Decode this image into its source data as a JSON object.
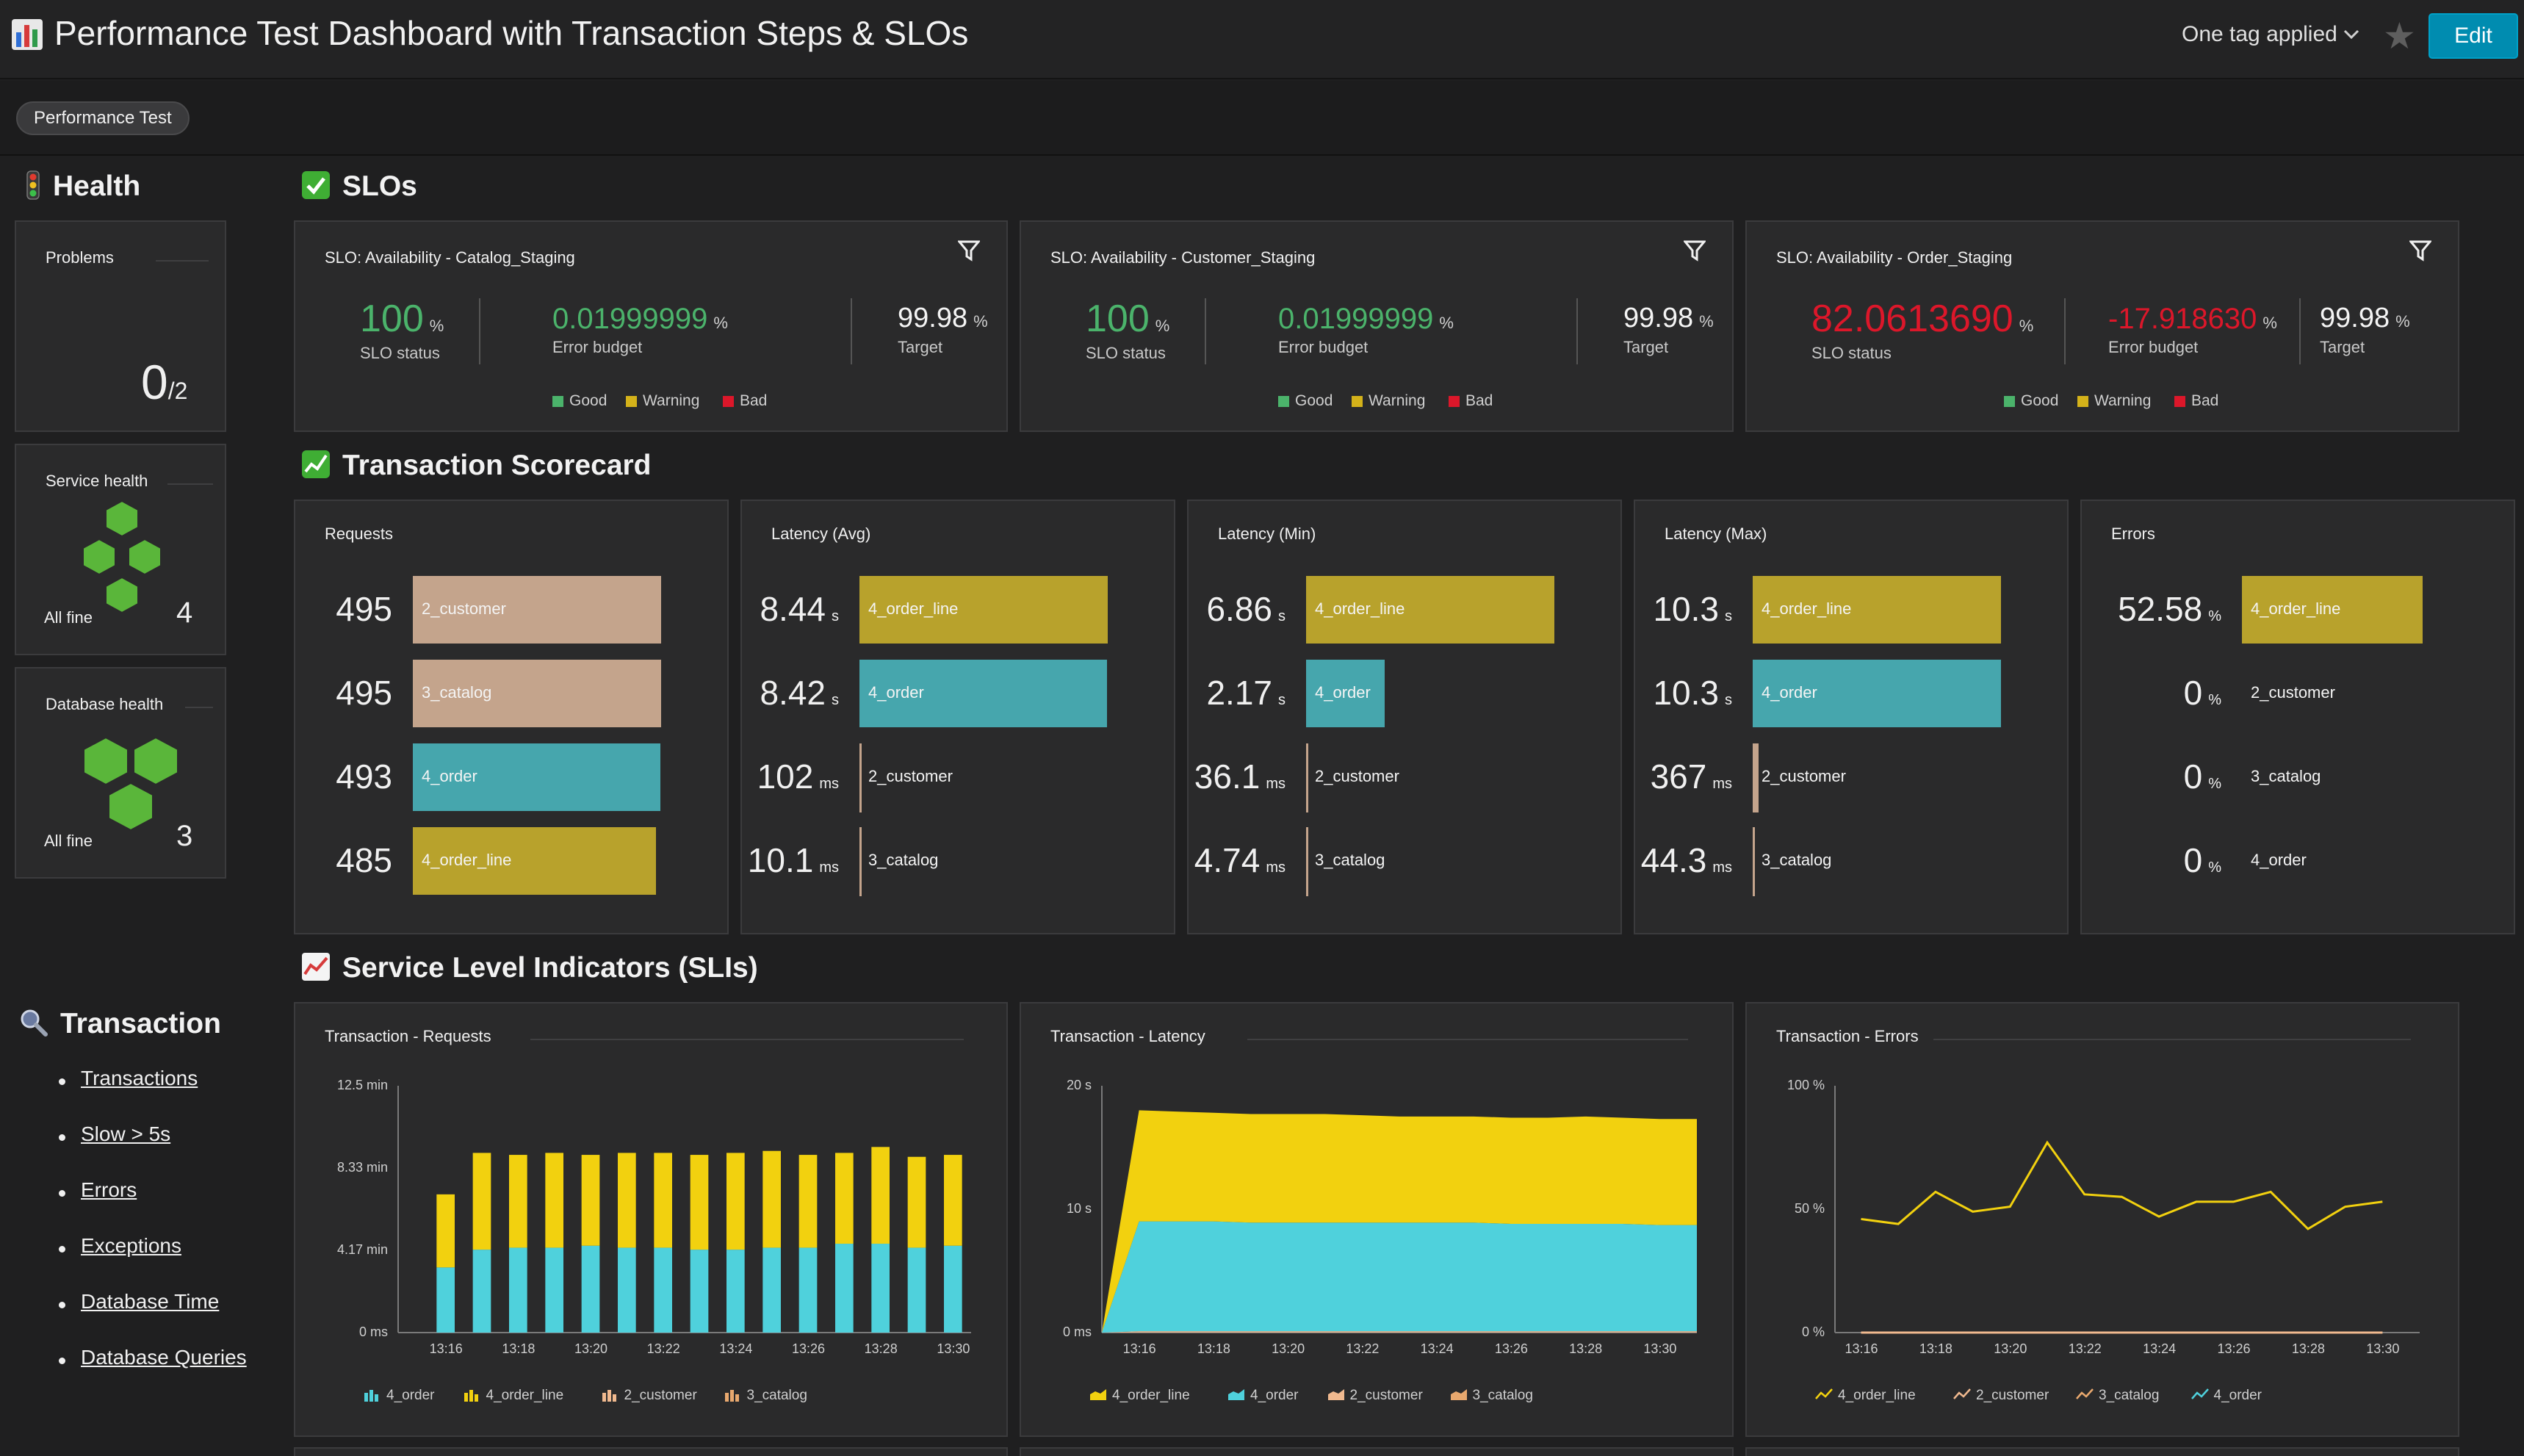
{
  "header": {
    "title": "Performance Test Dashboard with Transaction Steps & SLOs",
    "tag_selector": "One tag applied",
    "edit_label": "Edit"
  },
  "tags": [
    "Performance Test"
  ],
  "health": {
    "heading": "Health",
    "problems": {
      "label": "Problems",
      "value": "0",
      "total": "/2"
    },
    "service_health": {
      "label": "Service health",
      "status": "All fine",
      "count": "4"
    },
    "database_health": {
      "label": "Database health",
      "status": "All fine",
      "count": "3"
    }
  },
  "transaction": {
    "heading": "Transaction",
    "links": [
      "Transactions",
      "Slow > 5s",
      "Errors",
      "Exceptions",
      "Database Time",
      "Database Queries"
    ]
  },
  "slos": {
    "heading": "SLOs",
    "legend": [
      "Good",
      "Warning",
      "Bad"
    ],
    "colors": {
      "good": "#4bb36b",
      "warning": "#d4b21a",
      "bad": "#dc172a"
    },
    "tiles": [
      {
        "title": "SLO: Availability - Catalog_Staging",
        "status": "100",
        "status_unit": "%",
        "status_label": "SLO status",
        "budget": "0.01999999",
        "budget_unit": "%",
        "budget_label": "Error budget",
        "target": "99.98",
        "target_unit": "%",
        "target_label": "Target",
        "state": "good"
      },
      {
        "title": "SLO: Availability - Customer_Staging",
        "status": "100",
        "status_unit": "%",
        "status_label": "SLO status",
        "budget": "0.01999999",
        "budget_unit": "%",
        "budget_label": "Error budget",
        "target": "99.98",
        "target_unit": "%",
        "target_label": "Target",
        "state": "good"
      },
      {
        "title": "SLO: Availability - Order_Staging",
        "status": "82.0613690",
        "status_unit": "%",
        "status_label": "SLO status",
        "budget": "-17.918630",
        "budget_unit": "%",
        "budget_label": "Error budget",
        "target": "99.98",
        "target_unit": "%",
        "target_label": "Target",
        "state": "bad"
      }
    ]
  },
  "scorecard": {
    "heading": "Transaction Scorecard",
    "step_colors": {
      "2_customer": "#c4a48c",
      "3_catalog": "#c4a48c",
      "4_order": "#46a6ad",
      "4_order_line": "#b8a22c"
    },
    "tiles": [
      {
        "title": "Requests",
        "rows": [
          {
            "value": "495",
            "unit": "",
            "label": "2_customer",
            "fraction": 1.0
          },
          {
            "value": "495",
            "unit": "",
            "label": "3_catalog",
            "fraction": 1.0
          },
          {
            "value": "493",
            "unit": "",
            "label": "4_order",
            "fraction": 0.996
          },
          {
            "value": "485",
            "unit": "",
            "label": "4_order_line",
            "fraction": 0.98
          }
        ]
      },
      {
        "title": "Latency (Avg)",
        "rows": [
          {
            "value": "8.44",
            "unit": "s",
            "label": "4_order_line",
            "fraction": 1.0
          },
          {
            "value": "8.42",
            "unit": "s",
            "label": "4_order",
            "fraction": 0.998
          },
          {
            "value": "102",
            "unit": "ms",
            "label": "2_customer",
            "fraction": 0.012
          },
          {
            "value": "10.1",
            "unit": "ms",
            "label": "3_catalog",
            "fraction": 0.001
          }
        ]
      },
      {
        "title": "Latency (Min)",
        "rows": [
          {
            "value": "6.86",
            "unit": "s",
            "label": "4_order_line",
            "fraction": 1.0
          },
          {
            "value": "2.17",
            "unit": "s",
            "label": "4_order",
            "fraction": 0.316
          },
          {
            "value": "36.1",
            "unit": "ms",
            "label": "2_customer",
            "fraction": 0.005
          },
          {
            "value": "4.74",
            "unit": "ms",
            "label": "3_catalog",
            "fraction": 0.001
          }
        ]
      },
      {
        "title": "Latency (Max)",
        "rows": [
          {
            "value": "10.3",
            "unit": "s",
            "label": "4_order_line",
            "fraction": 1.0
          },
          {
            "value": "10.3",
            "unit": "s",
            "label": "4_order",
            "fraction": 1.0
          },
          {
            "value": "367",
            "unit": "ms",
            "label": "2_customer",
            "fraction": 0.036
          },
          {
            "value": "44.3",
            "unit": "ms",
            "label": "3_catalog",
            "fraction": 0.004
          }
        ]
      },
      {
        "title": "Errors",
        "rows": [
          {
            "value": "52.58",
            "unit": "%",
            "label": "4_order_line",
            "fraction": 1.0
          },
          {
            "value": "0",
            "unit": "%",
            "label": "2_customer",
            "fraction": 0
          },
          {
            "value": "0",
            "unit": "%",
            "label": "3_catalog",
            "fraction": 0
          },
          {
            "value": "0",
            "unit": "%",
            "label": "4_order",
            "fraction": 0
          }
        ]
      }
    ]
  },
  "slis": {
    "heading": "Service Level Indicators (SLIs)"
  },
  "chart_data": [
    {
      "type": "bar",
      "title": "Transaction - Requests",
      "stacked": true,
      "x_ticks": [
        "13:16",
        "13:18",
        "13:20",
        "13:22",
        "13:24",
        "13:26",
        "13:28",
        "13:30"
      ],
      "y_ticks": [
        "0 ms",
        "4.17 min",
        "8.33 min",
        "12.5 min"
      ],
      "ylim": [
        0,
        12.5
      ],
      "categories": [
        "13:16",
        "13:17",
        "13:18",
        "13:19",
        "13:20",
        "13:21",
        "13:22",
        "13:23",
        "13:24",
        "13:25",
        "13:26",
        "13:27",
        "13:28",
        "13:29",
        "13:30"
      ],
      "series": [
        {
          "name": "4_order",
          "color": "#4fd1dc",
          "values": [
            3.3,
            4.2,
            4.3,
            4.3,
            4.4,
            4.3,
            4.3,
            4.2,
            4.2,
            4.3,
            4.3,
            4.5,
            4.5,
            4.3,
            4.4
          ]
        },
        {
          "name": "4_order_line",
          "color": "#f2d10f",
          "values": [
            3.7,
            4.9,
            4.7,
            4.8,
            4.6,
            4.8,
            4.8,
            4.8,
            4.9,
            4.9,
            4.7,
            4.6,
            4.9,
            4.6,
            4.6
          ]
        },
        {
          "name": "2_customer",
          "color": "#f0b98f",
          "values": [
            0,
            0,
            0,
            0,
            0,
            0,
            0,
            0,
            0,
            0,
            0,
            0,
            0,
            0,
            0
          ]
        },
        {
          "name": "3_catalog",
          "color": "#e8a86e",
          "values": [
            0,
            0,
            0,
            0,
            0,
            0,
            0,
            0,
            0,
            0,
            0,
            0,
            0,
            0,
            0
          ]
        }
      ]
    },
    {
      "type": "area",
      "title": "Transaction - Latency",
      "stacked": true,
      "x_ticks": [
        "13:16",
        "13:18",
        "13:20",
        "13:22",
        "13:24",
        "13:26",
        "13:28",
        "13:30"
      ],
      "y_ticks": [
        "0 ms",
        "10 s",
        "20 s"
      ],
      "ylim": [
        0,
        20
      ],
      "x": [
        15,
        16,
        17,
        18,
        19,
        20,
        21,
        22,
        23,
        24,
        25,
        26,
        27,
        28,
        29,
        30,
        31
      ],
      "series": [
        {
          "name": "4_order_line",
          "color": "#f2d10f",
          "values": [
            0,
            9.0,
            8.9,
            8.8,
            8.8,
            8.8,
            8.8,
            8.7,
            8.6,
            8.6,
            8.6,
            8.6,
            8.6,
            8.7,
            8.6,
            8.6,
            8.6
          ]
        },
        {
          "name": "4_order",
          "color": "#4fd1dc",
          "values": [
            0,
            8.9,
            8.9,
            8.9,
            8.8,
            8.8,
            8.8,
            8.8,
            8.8,
            8.8,
            8.8,
            8.7,
            8.7,
            8.7,
            8.7,
            8.6,
            8.6
          ]
        },
        {
          "name": "2_customer",
          "color": "#f0b98f",
          "values": [
            0,
            0.1,
            0.1,
            0.1,
            0.1,
            0.1,
            0.1,
            0.1,
            0.1,
            0.1,
            0.1,
            0.1,
            0.1,
            0.1,
            0.1,
            0.1,
            0.1
          ]
        },
        {
          "name": "3_catalog",
          "color": "#e8a86e",
          "values": [
            0,
            0.01,
            0.01,
            0.01,
            0.01,
            0.01,
            0.01,
            0.01,
            0.01,
            0.01,
            0.01,
            0.01,
            0.01,
            0.01,
            0.01,
            0.01,
            0.01
          ]
        }
      ]
    },
    {
      "type": "line",
      "title": "Transaction - Errors",
      "x_ticks": [
        "13:16",
        "13:18",
        "13:20",
        "13:22",
        "13:24",
        "13:26",
        "13:28",
        "13:30"
      ],
      "y_ticks": [
        "0 %",
        "50 %",
        "100 %"
      ],
      "ylim": [
        0,
        100
      ],
      "x": [
        16,
        17,
        18,
        19,
        20,
        21,
        22,
        23,
        24,
        25,
        26,
        27,
        28,
        29,
        30
      ],
      "series": [
        {
          "name": "4_order_line",
          "color": "#f2d10f",
          "values": [
            46,
            44,
            57,
            49,
            51,
            77,
            56,
            55,
            47,
            53,
            53,
            57,
            42,
            51,
            53
          ]
        },
        {
          "name": "2_customer",
          "color": "#f0b98f",
          "values": [
            0,
            0,
            0,
            0,
            0,
            0,
            0,
            0,
            0,
            0,
            0,
            0,
            0,
            0,
            0
          ]
        },
        {
          "name": "3_catalog",
          "color": "#e8a86e",
          "values": [
            0,
            0,
            0,
            0,
            0,
            0,
            0,
            0,
            0,
            0,
            0,
            0,
            0,
            0,
            0
          ]
        },
        {
          "name": "4_order",
          "color": "#4fd1dc",
          "values": [
            0,
            0,
            0,
            0,
            0,
            0,
            0,
            0,
            0,
            0,
            0,
            0,
            0,
            0,
            0
          ]
        }
      ]
    }
  ]
}
